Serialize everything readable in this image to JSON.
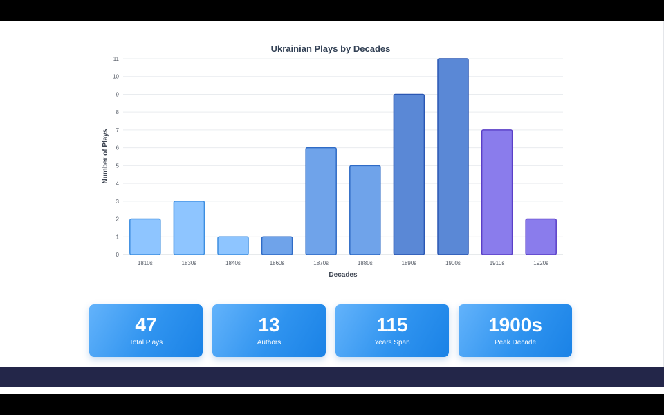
{
  "chart_data": {
    "type": "bar",
    "title": "Ukrainian Plays by Decades",
    "xlabel": "Decades",
    "ylabel": "Number of Plays",
    "categories": [
      "1810s",
      "1830s",
      "1840s",
      "1860s",
      "1870s",
      "1880s",
      "1890s",
      "1900s",
      "1910s",
      "1920s"
    ],
    "values": [
      2,
      3,
      1,
      1,
      6,
      5,
      9,
      11,
      7,
      2
    ],
    "ylim": [
      0,
      11
    ],
    "yticks": [
      0,
      1,
      2,
      3,
      4,
      5,
      6,
      7,
      8,
      9,
      10,
      11
    ],
    "grid": true,
    "legend": "none",
    "bar_colors": [
      "#8ec5ff",
      "#8ec5ff",
      "#8ec5ff",
      "#6fa3ea",
      "#6fa3ea",
      "#6fa3ea",
      "#5a88d6",
      "#5a88d6",
      "#8a7cec",
      "#8a7cec"
    ],
    "bar_border_colors": [
      "#3d8ee0",
      "#3d8ee0",
      "#3d8ee0",
      "#2f6bc6",
      "#2f6bc6",
      "#2f6bc6",
      "#2a57b3",
      "#2a57b3",
      "#5a3fc7",
      "#5a3fc7"
    ]
  },
  "stats": [
    {
      "value": "47",
      "label": "Total Plays"
    },
    {
      "value": "13",
      "label": "Authors"
    },
    {
      "value": "115",
      "label": "Years Span"
    },
    {
      "value": "1900s",
      "label": "Peak Decade"
    }
  ],
  "colors": {
    "card_gradient_start": "#63b3fb",
    "card_gradient_end": "#1a82e6",
    "footer_band": "#232649"
  }
}
